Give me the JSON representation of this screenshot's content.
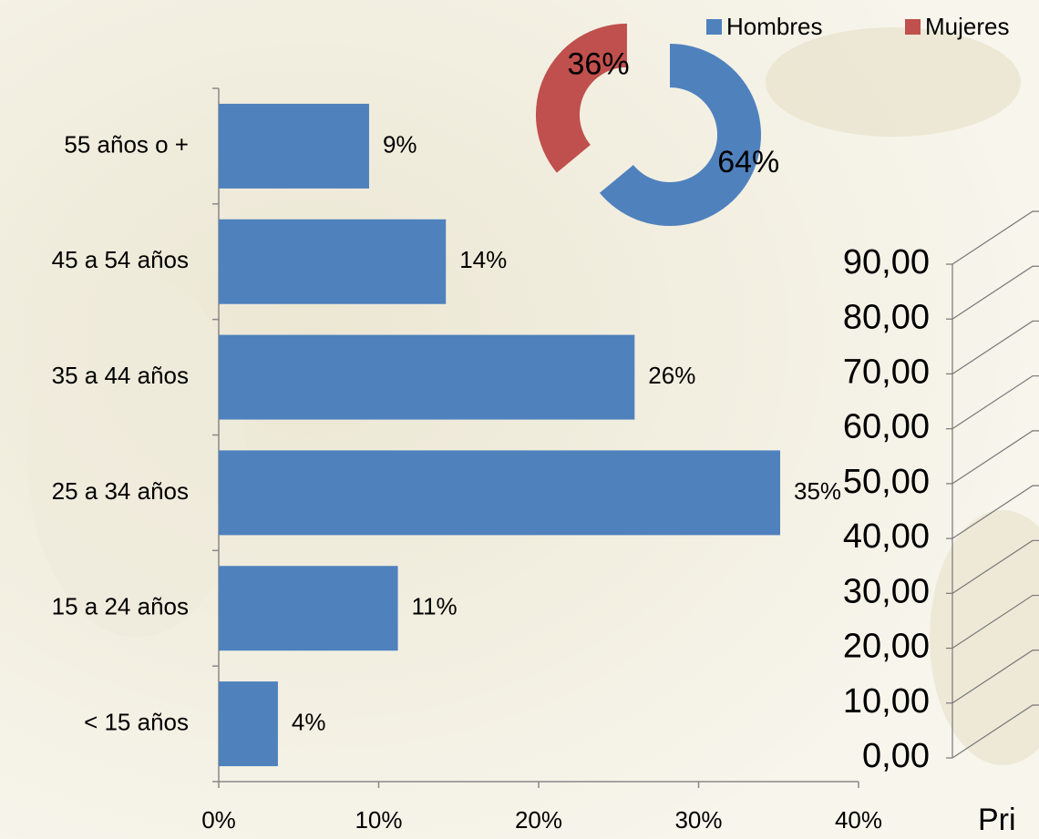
{
  "chart_data": [
    {
      "type": "bar",
      "orientation": "horizontal",
      "categories": [
        "55 años o +",
        "45 a 54 años",
        "35 a 44 años",
        "25 a 34 años",
        "15 a 24 años",
        "< 15 años"
      ],
      "values": [
        9.4,
        14.2,
        26.0,
        35.1,
        11.2,
        3.7
      ],
      "value_labels": [
        "9%",
        "14%",
        "26%",
        "35%",
        "11%",
        "4%"
      ],
      "color": "#4f81bd",
      "xlim": [
        0,
        40
      ],
      "xticks": [
        {
          "value": 0,
          "label": "0%"
        },
        {
          "value": 10,
          "label": "10%"
        },
        {
          "value": 20,
          "label": "20%"
        },
        {
          "value": 30,
          "label": "30%"
        },
        {
          "value": 40,
          "label": "40%"
        }
      ]
    },
    {
      "type": "pie",
      "donut": true,
      "legend": "top-right",
      "categories": [
        "Hombres",
        "Mujeres"
      ],
      "values": [
        64,
        36
      ],
      "value_labels": [
        "64%",
        "36%"
      ],
      "colors": [
        "#4f81bd",
        "#c0504d"
      ]
    },
    {
      "type": "bar3d",
      "categories": [
        "Pri"
      ],
      "ylim": [
        0,
        90
      ],
      "yticks": [
        {
          "value": 0,
          "label": "0,00"
        },
        {
          "value": 10,
          "label": "10,00"
        },
        {
          "value": 20,
          "label": "20,00"
        },
        {
          "value": 30,
          "label": "30,00"
        },
        {
          "value": 40,
          "label": "40,00"
        },
        {
          "value": 50,
          "label": "50,00"
        },
        {
          "value": 60,
          "label": "60,00"
        },
        {
          "value": 70,
          "label": "70,00"
        },
        {
          "value": 80,
          "label": "80,00"
        },
        {
          "value": 90,
          "label": "90,00"
        }
      ],
      "grid": true
    }
  ]
}
